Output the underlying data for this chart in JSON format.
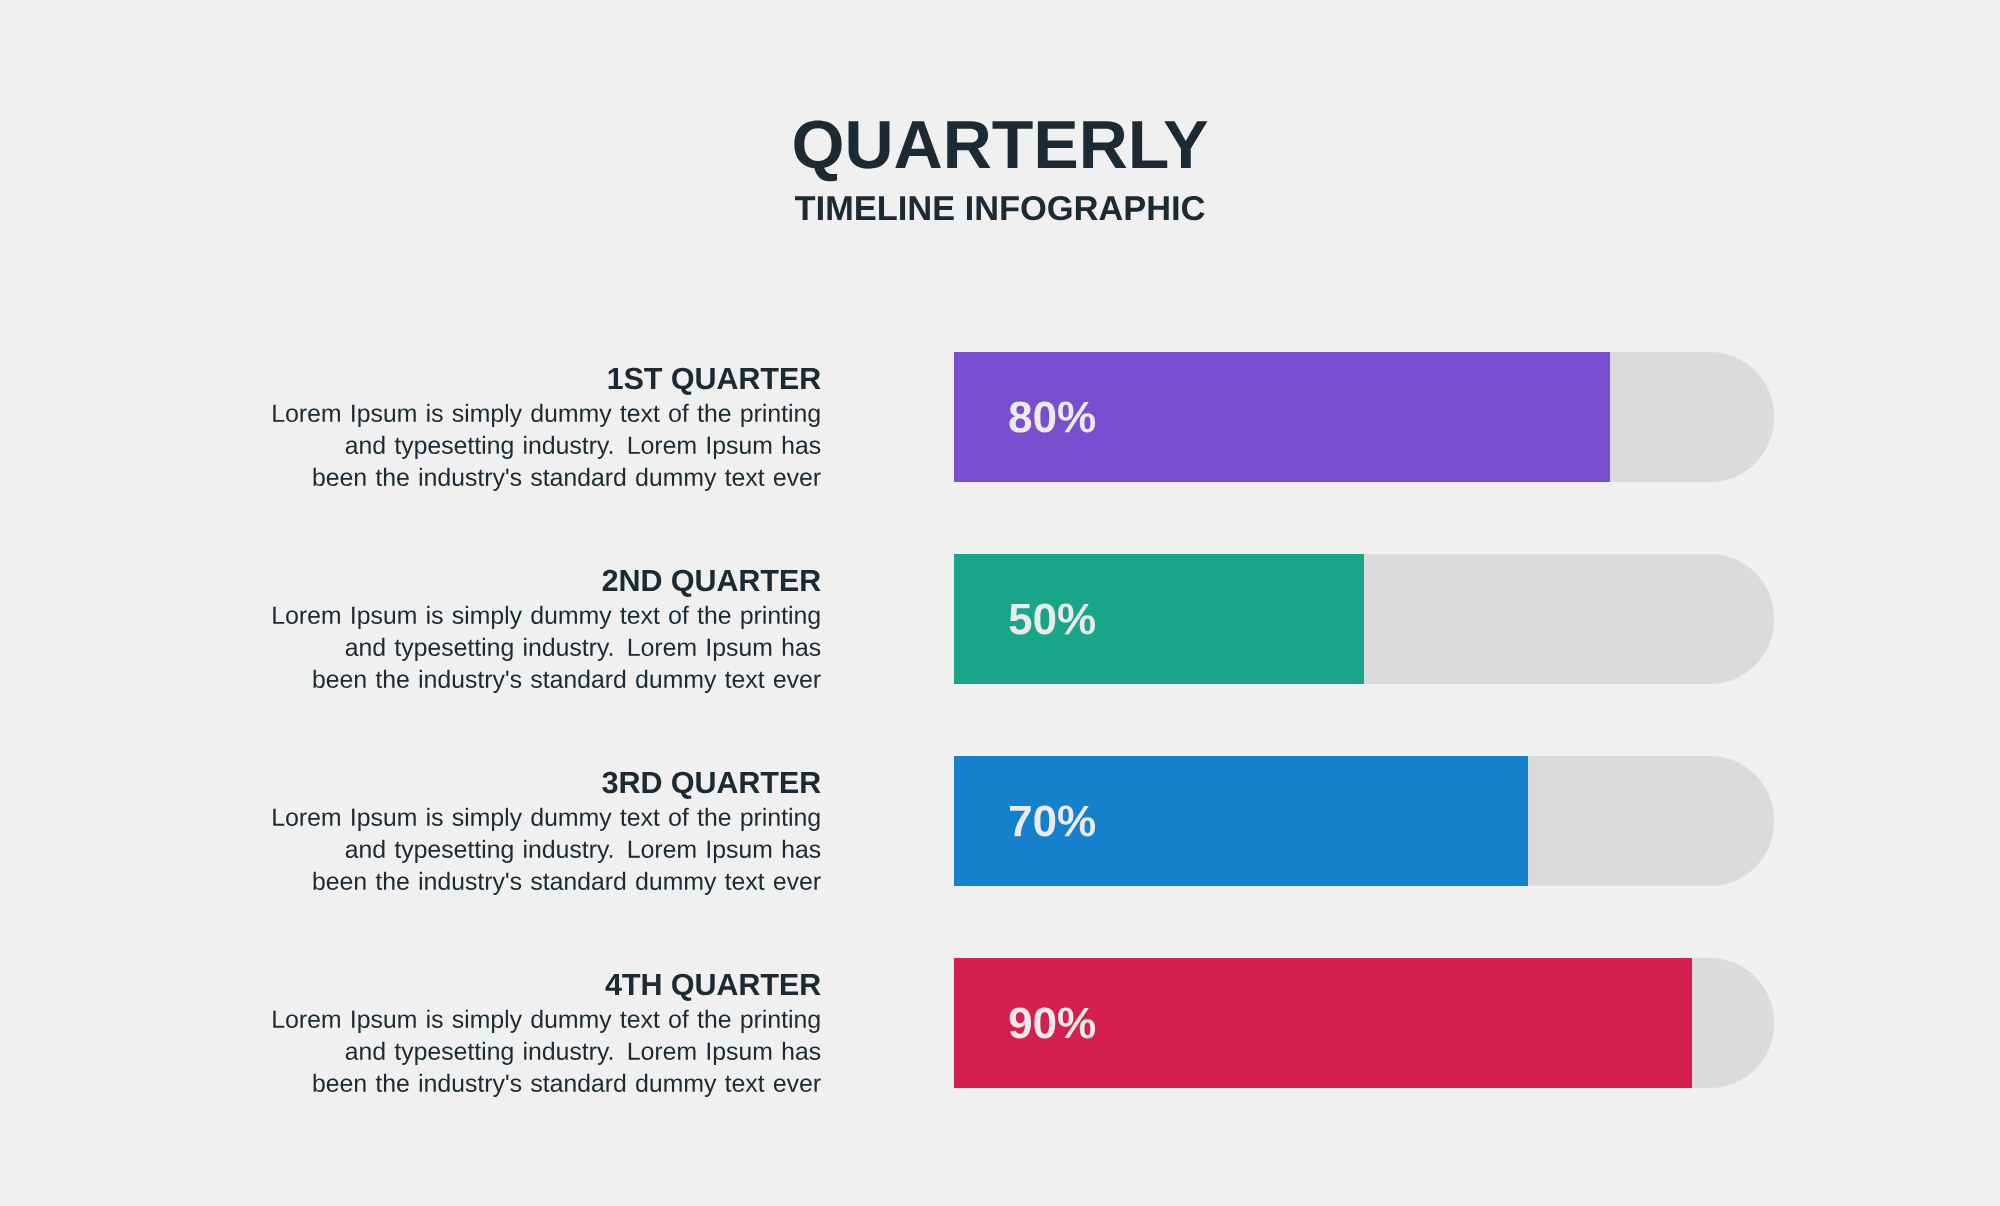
{
  "chart_data": {
    "type": "bar",
    "orientation": "horizontal",
    "title": "QUARTERLY",
    "subtitle": "TIMELINE INFOGRAPHIC",
    "categories": [
      "1ST QUARTER",
      "2ND QUARTER",
      "3RD QUARTER",
      "4TH QUARTER"
    ],
    "values": [
      80,
      50,
      70,
      90
    ],
    "colors": [
      "#7a4fcf",
      "#18a58a",
      "#1580cc",
      "#d5204f"
    ],
    "value_labels": [
      "80%",
      "50%",
      "70%",
      "90%"
    ],
    "xlim": [
      0,
      100
    ],
    "tick_labels": "y",
    "annotations": [
      "Lorem Ipsum is simply dummy text of the printing and typesetting industry. Lorem Ipsum has been the industry's standard dummy text ever",
      "Lorem Ipsum is simply dummy text of the printing and typesetting industry. Lorem Ipsum has been the industry's standard dummy text ever",
      "Lorem Ipsum is simply dummy text of the printing and typesetting industry. Lorem Ipsum has been the industry's standard dummy text ever",
      "Lorem Ipsum is simply dummy text of the printing and typesetting industry. Lorem Ipsum has been the industry's standard dummy text ever"
    ]
  }
}
